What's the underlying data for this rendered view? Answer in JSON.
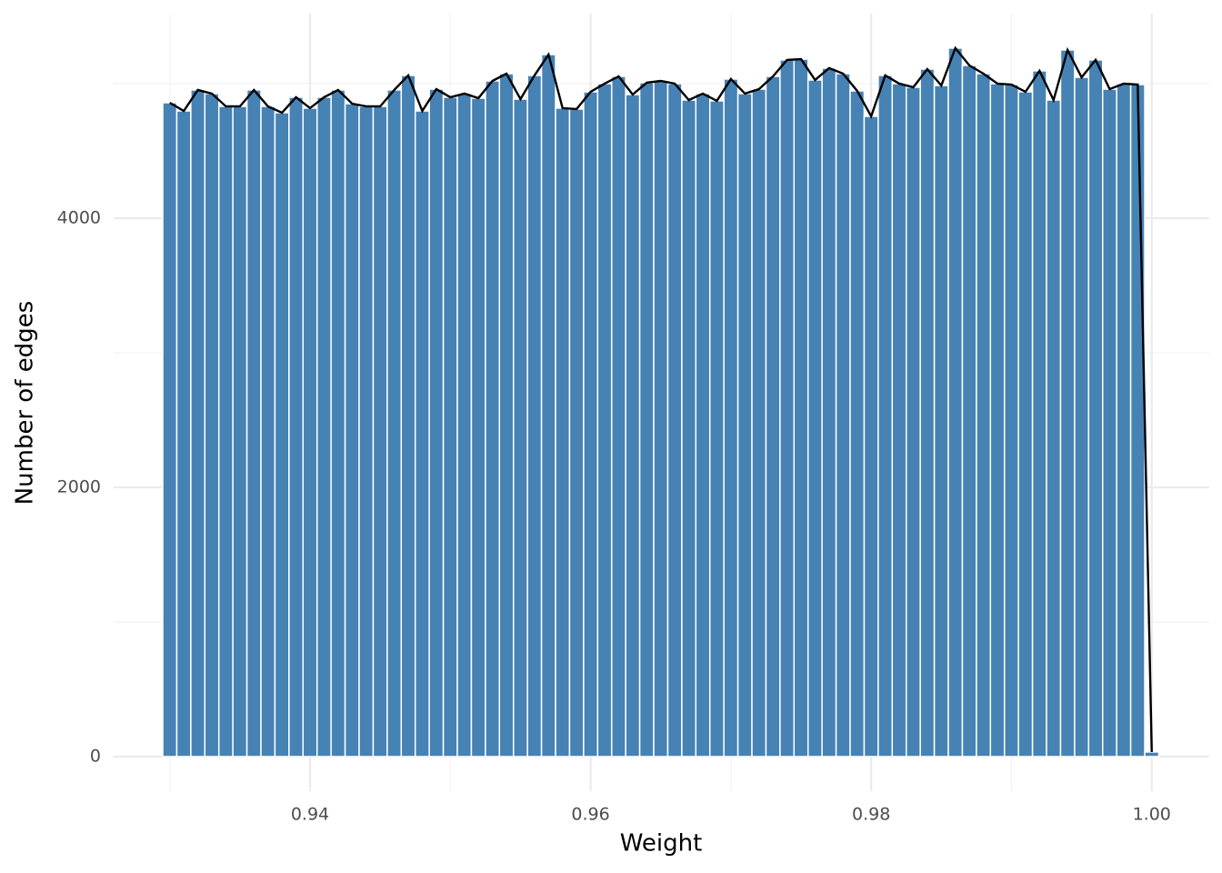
{
  "chart_data": {
    "type": "histogram",
    "x_label": "Weight",
    "y_label": "Number of edges",
    "bins": [
      0.9295,
      0.9305,
      0.9315,
      0.9325,
      0.9335,
      0.9345,
      0.9355,
      0.9365,
      0.9375,
      0.9385,
      0.9395,
      0.9405,
      0.9415,
      0.9425,
      0.9435,
      0.9445,
      0.9455,
      0.9465,
      0.9475,
      0.9485,
      0.9495,
      0.9505,
      0.9515,
      0.9525,
      0.9535,
      0.9545,
      0.9555,
      0.9565,
      0.9575,
      0.9585,
      0.9595,
      0.9605,
      0.9615,
      0.9625,
      0.9635,
      0.9645,
      0.9655,
      0.9665,
      0.9675,
      0.9685,
      0.9695,
      0.9705,
      0.9715,
      0.9725,
      0.9735,
      0.9745,
      0.9755,
      0.9765,
      0.9775,
      0.9785,
      0.9795,
      0.9805,
      0.9815,
      0.9825,
      0.9835,
      0.9845,
      0.9855,
      0.9865,
      0.9875,
      0.9885,
      0.9895,
      0.9905,
      0.9915,
      0.9925,
      0.9935,
      0.9945,
      0.9955,
      0.9965,
      0.9975,
      0.9985,
      0.9995,
      1.0005
    ],
    "values": [
      4858,
      4797,
      4953,
      4926,
      4831,
      4831,
      4953,
      4831,
      4784,
      4899,
      4818,
      4899,
      4953,
      4851,
      4831,
      4831,
      4953,
      5061,
      4797,
      4959,
      4899,
      4926,
      4892,
      5020,
      5074,
      4885,
      5061,
      5216,
      4818,
      4811,
      4939,
      5000,
      5054,
      4919,
      5007,
      5020,
      5000,
      4878,
      4926,
      4872,
      5034,
      4926,
      4959,
      5054,
      5176,
      5182,
      5027,
      5115,
      5074,
      4946,
      4757,
      5061,
      5000,
      4973,
      5108,
      4986,
      5264,
      5135,
      5074,
      5000,
      4993,
      4939,
      5095,
      4878,
      5250,
      5047,
      5176,
      4959,
      5000,
      4993,
      34
    ],
    "color": "#4682b4",
    "line_color": "#000000",
    "xlim": [
      0.926,
      1.0041
    ],
    "xticks": [
      0.94,
      0.96,
      0.98,
      {
        "value": 1,
        "label": "1.00"
      }
    ],
    "x_minor_ticks": [
      0.93,
      0.95,
      0.97,
      0.99
    ],
    "ylim": [
      -257,
      5520
    ],
    "yticks": [
      0,
      2000,
      4000
    ],
    "y_minor_ticks": [
      1000,
      3000,
      5000
    ],
    "grid": true
  }
}
